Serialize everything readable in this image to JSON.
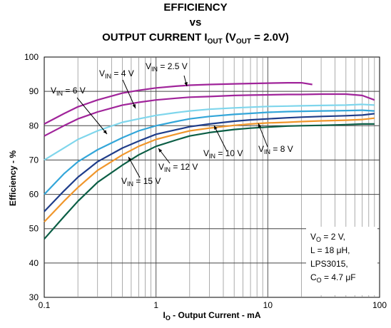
{
  "chart_data": {
    "type": "line",
    "title_line1": "EFFICIENCY",
    "title_line2": "vs",
    "title_line3_prefix": "OUTPUT CURRENT I",
    "title_line3_sub": "OUT",
    "title_line3_paren_open": " (V",
    "title_line3_sub2": "OUT",
    "title_line3_suffix": " = 2.0V)",
    "xlabel": "I",
    "xlabel_sub": "O",
    "xlabel_rest": " - Output Current - mA",
    "ylabel": "Efficiency - %",
    "xscale": "log",
    "xlim": [
      0.1,
      100
    ],
    "ylim": [
      30,
      100
    ],
    "x_ticks": [
      0.1,
      1,
      10,
      100
    ],
    "x_tick_labels": [
      "0.1",
      "1",
      "10",
      "100"
    ],
    "y_ticks": [
      30,
      40,
      50,
      60,
      70,
      80,
      90,
      100
    ],
    "y_tick_labels": [
      "30",
      "40",
      "50",
      "60",
      "70",
      "80",
      "90",
      "100"
    ],
    "grid": true,
    "series": [
      {
        "name": "V_IN = 2.5 V",
        "label_main": "V",
        "label_sub": "IN",
        "label_rest": " = 2.5 V",
        "color": "#a0249a",
        "x": [
          0.1,
          0.15,
          0.2,
          0.3,
          0.5,
          0.7,
          1,
          1.5,
          2,
          3,
          5,
          7,
          10,
          15,
          20,
          25
        ],
        "y": [
          80.5,
          83.5,
          85.5,
          87.5,
          89.5,
          90.3,
          91,
          91.5,
          91.8,
          92,
          92.2,
          92.3,
          92.4,
          92.5,
          92.5,
          92
        ]
      },
      {
        "name": "V_IN = 4 V",
        "label_main": "V",
        "label_sub": "IN",
        "label_rest": " = 4 V",
        "color": "#a0249a",
        "x": [
          0.1,
          0.15,
          0.2,
          0.3,
          0.5,
          0.7,
          1,
          1.5,
          2,
          3,
          5,
          7,
          10,
          15,
          20,
          30,
          50,
          70,
          90
        ],
        "y": [
          77,
          80,
          82,
          84,
          86,
          86.8,
          87.5,
          88,
          88.3,
          88.5,
          88.8,
          88.9,
          89,
          89.1,
          89.1,
          89.2,
          89.2,
          88.8,
          87.5
        ]
      },
      {
        "name": "V_IN = 6 V",
        "label_main": "V",
        "label_sub": "IN",
        "label_rest": " = 6 V",
        "color": "#7fd6ec",
        "x": [
          0.1,
          0.15,
          0.2,
          0.3,
          0.5,
          0.7,
          1,
          1.5,
          2,
          3,
          5,
          7,
          10,
          15,
          20,
          30,
          50,
          70,
          90
        ],
        "y": [
          70,
          73.5,
          76,
          78.5,
          81,
          82,
          83,
          83.8,
          84.3,
          84.8,
          85.2,
          85.4,
          85.6,
          85.7,
          85.8,
          85.9,
          86,
          86.2,
          86
        ]
      },
      {
        "name": "V_IN = 8 V",
        "label_main": "V",
        "label_sub": "IN",
        "label_rest": " = 8 V",
        "color": "#33a6d9",
        "x": [
          0.1,
          0.15,
          0.2,
          0.3,
          0.5,
          0.7,
          1,
          1.5,
          2,
          3,
          5,
          7,
          10,
          15,
          20,
          30,
          50,
          70,
          90
        ],
        "y": [
          60,
          66,
          69.5,
          73,
          76.5,
          78.5,
          80,
          81.2,
          82,
          82.7,
          83.3,
          83.6,
          83.9,
          84.1,
          84.2,
          84.3,
          84.4,
          84.5,
          84.3
        ]
      },
      {
        "name": "V_IN = 10 V",
        "label_main": "V",
        "label_sub": "IN",
        "label_rest": " = 10 V",
        "color": "#1f3d8a",
        "x": [
          0.1,
          0.15,
          0.2,
          0.3,
          0.5,
          0.7,
          1,
          1.5,
          2,
          3,
          5,
          7,
          10,
          15,
          20,
          30,
          50,
          70,
          90
        ],
        "y": [
          55,
          61,
          65,
          69.5,
          73.5,
          75.5,
          77.5,
          78.8,
          79.7,
          80.5,
          81.3,
          81.7,
          82,
          82.3,
          82.5,
          82.7,
          82.9,
          83.1,
          83.5
        ]
      },
      {
        "name": "V_IN = 12 V",
        "label_main": "V",
        "label_sub": "IN",
        "label_rest": " = 12 V",
        "color": "#f0962b",
        "x": [
          0.1,
          0.15,
          0.2,
          0.3,
          0.5,
          0.7,
          1,
          1.5,
          2,
          3,
          5,
          7,
          10,
          15,
          20,
          30,
          50,
          70,
          90
        ],
        "y": [
          52,
          58,
          62,
          67,
          71.5,
          74,
          76,
          77.5,
          78.5,
          79.3,
          80.1,
          80.5,
          80.8,
          81,
          81.2,
          81.4,
          81.6,
          81.8,
          82.2
        ]
      },
      {
        "name": "V_IN = 15 V",
        "label_main": "V",
        "label_sub": "IN",
        "label_rest": " = 15 V",
        "color": "#0b5e45",
        "x": [
          0.1,
          0.15,
          0.2,
          0.3,
          0.5,
          0.7,
          1,
          1.5,
          2,
          3,
          5,
          7,
          10,
          15,
          20,
          30,
          50,
          70,
          90
        ],
        "y": [
          47,
          53.5,
          58,
          63.5,
          68.5,
          71.5,
          74,
          75.8,
          77,
          78,
          78.9,
          79.3,
          79.6,
          79.9,
          80,
          80.1,
          80.3,
          80.5,
          80.5
        ]
      }
    ],
    "notes": [
      {
        "main": "V",
        "sub": "O",
        "rest": " = 2 V,"
      },
      {
        "main": "L = 18 ",
        "sub": "",
        "rest": "μH,"
      },
      {
        "main": "LPS3015,",
        "sub": "",
        "rest": ""
      },
      {
        "main": "C",
        "sub": "O",
        "rest": " = 4.7 μF"
      }
    ]
  }
}
